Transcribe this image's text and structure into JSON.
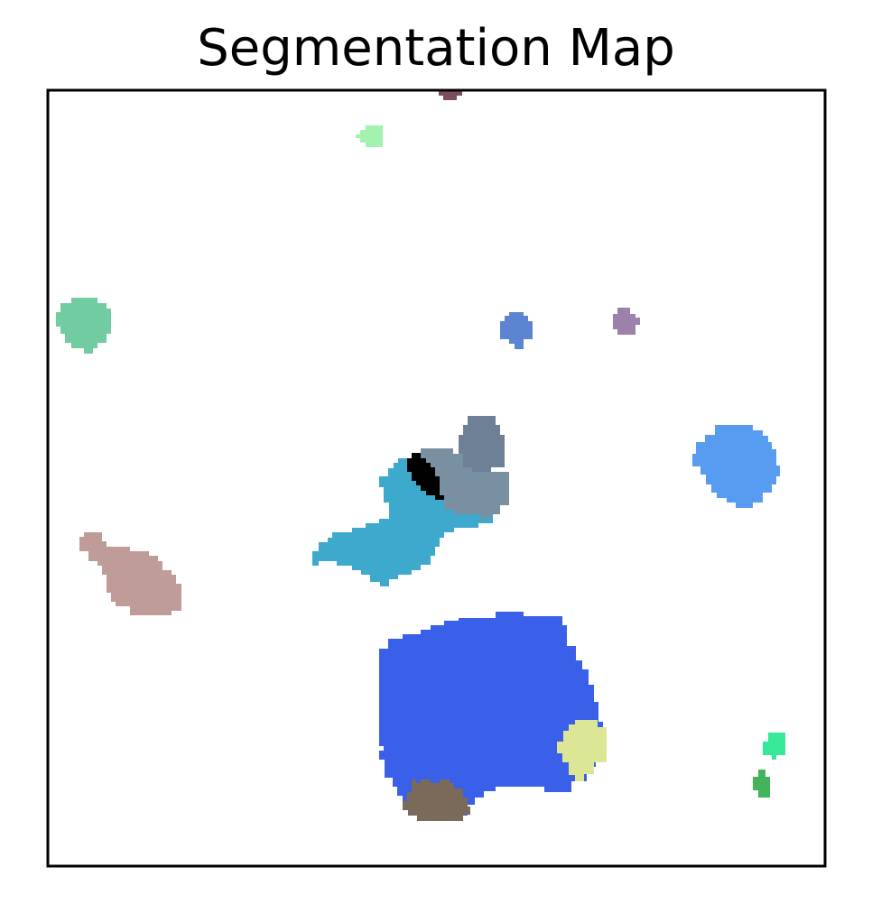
{
  "figure": {
    "title": "Segmentation Map"
  },
  "segments": [
    {
      "name": "dark-rose-blob",
      "color": "#7a4e5a"
    },
    {
      "name": "light-green-blob",
      "color": "#a3f2b2"
    },
    {
      "name": "mint-green-blob",
      "color": "#72cca2"
    },
    {
      "name": "cornflower-blue-blob",
      "color": "#5b84d2"
    },
    {
      "name": "lavender-blob",
      "color": "#9c82aa"
    },
    {
      "name": "slate-gray-blob",
      "color": "#6e8096"
    },
    {
      "name": "steel-gray-blob",
      "color": "#7890a2"
    },
    {
      "name": "black-blob",
      "color": "#000000"
    },
    {
      "name": "cyan-blue-blob",
      "color": "#3ca9cd"
    },
    {
      "name": "sky-blue-blob",
      "color": "#589cf2"
    },
    {
      "name": "rosy-brown-blob",
      "color": "#c09c99"
    },
    {
      "name": "royal-blue-blob",
      "color": "#3a5fe8"
    },
    {
      "name": "pale-yellow-blob",
      "color": "#dde695"
    },
    {
      "name": "brown-gray-blob",
      "color": "#7a6a5a"
    },
    {
      "name": "spring-green-blob",
      "color": "#36e89a"
    },
    {
      "name": "green-blob",
      "color": "#45b35a"
    }
  ]
}
